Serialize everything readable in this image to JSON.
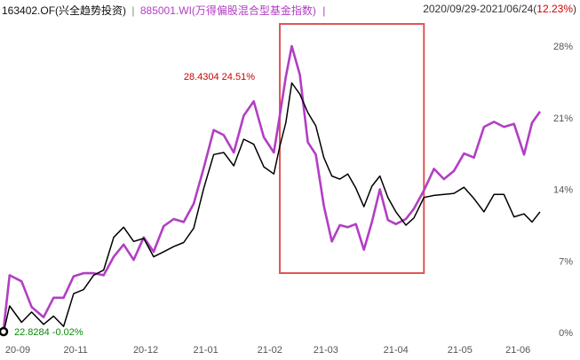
{
  "legend": {
    "fund_label": "163402.OF(兴全趋势投资)",
    "separator": "|",
    "index_label": "885001.WI(万得偏股混合型基金指数)",
    "trailing_separator": "|"
  },
  "range": {
    "dates": "2020/09/29-2021/06/24(",
    "change": "12.23%",
    "close": ")"
  },
  "colors": {
    "fund": "#000000",
    "index": "#b23ec4",
    "highlight_box": "#e05555",
    "up": "#cc0000",
    "down": "#0a8a0a"
  },
  "annotations": {
    "peak": "28.4304  24.51%",
    "start": "22.8284  -0.02%"
  },
  "chart_data": {
    "type": "line",
    "x_ticks": [
      "20-09",
      "20-11",
      "20-12",
      "21-01",
      "21-02",
      "21-03",
      "21-04",
      "21-05",
      "21-06"
    ],
    "y_ticks": [
      "28%",
      "21%",
      "14%",
      "7%",
      "0%"
    ],
    "ylim": [
      0,
      28
    ],
    "series": [
      {
        "name": "163402.OF(兴全趋势投资)",
        "color": "#000000",
        "points": [
          [
            "2020-09-29",
            0.0
          ],
          [
            "2020-10-02",
            2.6
          ],
          [
            "2020-10-08",
            1.0
          ],
          [
            "2020-10-13",
            2.0
          ],
          [
            "2020-10-19",
            0.8
          ],
          [
            "2020-10-24",
            1.6
          ],
          [
            "2020-10-29",
            0.6
          ],
          [
            "2020-11-03",
            3.8
          ],
          [
            "2020-11-08",
            4.2
          ],
          [
            "2020-11-13",
            5.6
          ],
          [
            "2020-11-18",
            6.1
          ],
          [
            "2020-11-23",
            9.3
          ],
          [
            "2020-11-28",
            10.3
          ],
          [
            "2020-12-03",
            8.9
          ],
          [
            "2020-12-08",
            9.2
          ],
          [
            "2020-12-13",
            7.4
          ],
          [
            "2020-12-18",
            7.9
          ],
          [
            "2020-12-23",
            8.4
          ],
          [
            "2020-12-28",
            8.8
          ],
          [
            "2021-01-02",
            10.2
          ],
          [
            "2021-01-07",
            14.1
          ],
          [
            "2021-01-12",
            17.4
          ],
          [
            "2021-01-17",
            17.6
          ],
          [
            "2021-01-22",
            16.3
          ],
          [
            "2021-01-27",
            18.9
          ],
          [
            "2021-02-01",
            18.4
          ],
          [
            "2021-02-06",
            16.2
          ],
          [
            "2021-02-11",
            15.5
          ],
          [
            "2021-02-14",
            18.2
          ],
          [
            "2021-02-17",
            20.5
          ],
          [
            "2021-02-20",
            24.4
          ],
          [
            "2021-02-24",
            23.3
          ],
          [
            "2021-02-28",
            21.5
          ],
          [
            "2021-03-04",
            20.2
          ],
          [
            "2021-03-08",
            17.1
          ],
          [
            "2021-03-12",
            15.3
          ],
          [
            "2021-03-16",
            15.0
          ],
          [
            "2021-03-20",
            15.5
          ],
          [
            "2021-03-24",
            14.1
          ],
          [
            "2021-03-28",
            12.3
          ],
          [
            "2021-04-01",
            14.3
          ],
          [
            "2021-04-05",
            15.3
          ],
          [
            "2021-04-09",
            13.2
          ],
          [
            "2021-04-13",
            11.8
          ],
          [
            "2021-04-18",
            10.5
          ],
          [
            "2021-04-22",
            11.2
          ],
          [
            "2021-04-27",
            13.2
          ],
          [
            "2021-05-02",
            13.4
          ],
          [
            "2021-05-07",
            13.5
          ],
          [
            "2021-05-12",
            13.6
          ],
          [
            "2021-05-17",
            14.2
          ],
          [
            "2021-05-22",
            13.1
          ],
          [
            "2021-05-27",
            11.8
          ],
          [
            "2021-06-01",
            13.5
          ],
          [
            "2021-06-06",
            13.5
          ],
          [
            "2021-06-11",
            11.3
          ],
          [
            "2021-06-16",
            11.6
          ],
          [
            "2021-06-20",
            10.8
          ],
          [
            "2021-06-24",
            11.8
          ]
        ]
      },
      {
        "name": "885001.WI(万得偏股混合型基金指数)",
        "color": "#b23ec4",
        "points": [
          [
            "2020-09-29",
            0.3
          ],
          [
            "2020-10-02",
            5.6
          ],
          [
            "2020-10-08",
            5.0
          ],
          [
            "2020-10-13",
            2.5
          ],
          [
            "2020-10-19",
            1.5
          ],
          [
            "2020-10-24",
            3.4
          ],
          [
            "2020-10-29",
            3.4
          ],
          [
            "2020-11-03",
            5.5
          ],
          [
            "2020-11-08",
            5.8
          ],
          [
            "2020-11-13",
            5.8
          ],
          [
            "2020-11-18",
            5.6
          ],
          [
            "2020-11-23",
            7.4
          ],
          [
            "2020-11-28",
            8.6
          ],
          [
            "2020-12-03",
            7.1
          ],
          [
            "2020-12-08",
            9.3
          ],
          [
            "2020-12-13",
            7.9
          ],
          [
            "2020-12-18",
            10.4
          ],
          [
            "2020-12-23",
            11.1
          ],
          [
            "2020-12-28",
            10.8
          ],
          [
            "2021-01-02",
            12.6
          ],
          [
            "2021-01-07",
            16.1
          ],
          [
            "2021-01-12",
            19.8
          ],
          [
            "2021-01-17",
            19.3
          ],
          [
            "2021-01-22",
            17.6
          ],
          [
            "2021-01-27",
            21.2
          ],
          [
            "2021-02-01",
            22.6
          ],
          [
            "2021-02-06",
            19.1
          ],
          [
            "2021-02-11",
            17.6
          ],
          [
            "2021-02-14",
            21.2
          ],
          [
            "2021-02-17",
            25.0
          ],
          [
            "2021-02-20",
            28.0
          ],
          [
            "2021-02-24",
            25.2
          ],
          [
            "2021-02-28",
            18.6
          ],
          [
            "2021-03-04",
            17.4
          ],
          [
            "2021-03-08",
            12.4
          ],
          [
            "2021-03-12",
            8.9
          ],
          [
            "2021-03-16",
            10.5
          ],
          [
            "2021-03-20",
            10.3
          ],
          [
            "2021-03-24",
            10.6
          ],
          [
            "2021-03-28",
            8.1
          ],
          [
            "2021-04-01",
            10.8
          ],
          [
            "2021-04-05",
            14.0
          ],
          [
            "2021-04-09",
            11.0
          ],
          [
            "2021-04-13",
            10.6
          ],
          [
            "2021-04-18",
            11.1
          ],
          [
            "2021-04-22",
            12.1
          ],
          [
            "2021-04-27",
            13.9
          ],
          [
            "2021-05-02",
            16.0
          ],
          [
            "2021-05-07",
            15.0
          ],
          [
            "2021-05-12",
            15.8
          ],
          [
            "2021-05-17",
            17.5
          ],
          [
            "2021-05-22",
            17.1
          ],
          [
            "2021-05-27",
            20.1
          ],
          [
            "2021-06-01",
            20.6
          ],
          [
            "2021-06-06",
            20.1
          ],
          [
            "2021-06-11",
            20.4
          ],
          [
            "2021-06-16",
            17.4
          ],
          [
            "2021-06-20",
            20.5
          ],
          [
            "2021-06-24",
            21.6
          ]
        ]
      }
    ],
    "grid": false,
    "highlight_range": [
      "2021-02-14",
      "2021-04-27"
    ]
  }
}
